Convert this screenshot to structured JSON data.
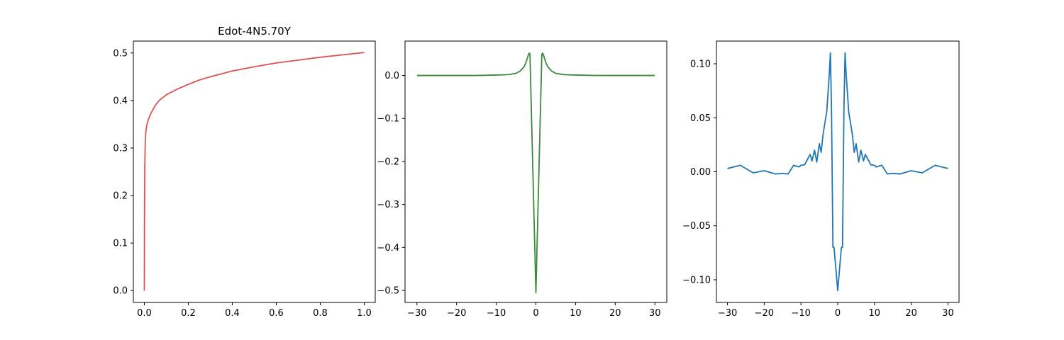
{
  "chart_data": [
    {
      "type": "line",
      "title": "Edot-4N5.70Y",
      "xlabel": "",
      "ylabel": "",
      "xlim": [
        -0.05,
        1.05
      ],
      "ylim": [
        -0.025,
        0.525
      ],
      "xticks": [
        0.0,
        0.2,
        0.4,
        0.6,
        0.8,
        1.0
      ],
      "xtick_labels": [
        "0.0",
        "0.2",
        "0.4",
        "0.6",
        "0.8",
        "1.0"
      ],
      "yticks": [
        0.0,
        0.1,
        0.2,
        0.3,
        0.4,
        0.5
      ],
      "ytick_labels": [
        "0.0",
        "0.1",
        "0.2",
        "0.3",
        "0.4",
        "0.5"
      ],
      "grid": false,
      "series": [
        {
          "color": "#e05252",
          "x": [
            0.0,
            0.001,
            0.002,
            0.004,
            0.006,
            0.01,
            0.015,
            0.02,
            0.03,
            0.05,
            0.07,
            0.1,
            0.15,
            0.2,
            0.25,
            0.3,
            0.4,
            0.5,
            0.6,
            0.7,
            0.8,
            0.9,
            1.0
          ],
          "y": [
            0.0,
            0.18,
            0.26,
            0.31,
            0.33,
            0.345,
            0.355,
            0.362,
            0.373,
            0.39,
            0.401,
            0.412,
            0.424,
            0.434,
            0.443,
            0.45,
            0.462,
            0.471,
            0.479,
            0.485,
            0.491,
            0.496,
            0.501
          ]
        }
      ]
    },
    {
      "type": "line",
      "title": "",
      "xlabel": "",
      "ylabel": "",
      "xlim": [
        -33,
        33
      ],
      "ylim": [
        -0.528,
        0.08
      ],
      "xticks": [
        -30,
        -20,
        -10,
        0,
        10,
        20,
        30
      ],
      "xtick_labels": [
        "−30",
        "−20",
        "−10",
        "0",
        "10",
        "20",
        "30"
      ],
      "yticks": [
        0.0,
        -0.1,
        -0.2,
        -0.3,
        -0.4,
        -0.5
      ],
      "ytick_labels": [
        "0.0",
        "−0.1",
        "−0.2",
        "−0.3",
        "−0.4",
        "−0.5"
      ],
      "grid": false,
      "series": [
        {
          "color": "#3a8a3a",
          "x": [
            -30,
            -25,
            -20,
            -15,
            -10,
            -7,
            -5,
            -4,
            -3,
            -2.5,
            -2,
            -1.7,
            -1.5,
            0,
            1.5,
            1.7,
            2,
            2.5,
            3,
            4,
            5,
            7,
            10,
            15,
            20,
            25,
            30
          ],
          "y": [
            0.0,
            0.0,
            0.0,
            0.0,
            0.001,
            0.002,
            0.005,
            0.01,
            0.02,
            0.03,
            0.045,
            0.052,
            0.05,
            -0.505,
            0.05,
            0.052,
            0.045,
            0.03,
            0.02,
            0.01,
            0.005,
            0.002,
            0.001,
            0.0,
            0.0,
            0.0,
            0.0
          ]
        }
      ]
    },
    {
      "type": "line",
      "title": "",
      "xlabel": "",
      "ylabel": "",
      "xlim": [
        -33,
        33
      ],
      "ylim": [
        -0.121,
        0.121
      ],
      "xticks": [
        -30,
        -20,
        -10,
        0,
        10,
        20,
        30
      ],
      "xtick_labels": [
        "−30",
        "−20",
        "−10",
        "0",
        "10",
        "20",
        "30"
      ],
      "yticks": [
        0.1,
        0.05,
        0.0,
        -0.05,
        -0.1
      ],
      "ytick_labels": [
        "0.10",
        "0.05",
        "0.00",
        "−0.05",
        "−0.10"
      ],
      "grid": false,
      "series": [
        {
          "color": "#1f77b4",
          "x": [
            -30,
            -26.5,
            -23,
            -20,
            -17,
            -15,
            -13.5,
            -12,
            -10.5,
            -10,
            -9,
            -8,
            -7.5,
            -7,
            -6.3,
            -5.7,
            -5,
            -4.5,
            -4,
            -3.5,
            -3,
            -2.7,
            -2.3,
            -2,
            -1.7,
            -1.3,
            -1,
            -0.5,
            0,
            0.5,
            1,
            1.3,
            1.7,
            2,
            2.3,
            2.7,
            3,
            3.5,
            4,
            4.5,
            5,
            5.7,
            6.3,
            7,
            7.5,
            8,
            9,
            10,
            10.5,
            12,
            13.5,
            15,
            17,
            20,
            23,
            26.5,
            30
          ],
          "y": [
            0.003,
            0.006,
            -0.001,
            0.001,
            -0.002,
            -0.0015,
            -0.002,
            0.006,
            0.0045,
            0.006,
            0.0065,
            0.013,
            0.016,
            0.01,
            0.02,
            0.009,
            0.026,
            0.018,
            0.034,
            0.045,
            0.055,
            0.07,
            0.09,
            0.11,
            0.06,
            -0.07,
            -0.07,
            -0.09,
            -0.11,
            -0.09,
            -0.07,
            -0.07,
            0.06,
            0.11,
            0.09,
            0.07,
            0.055,
            0.045,
            0.034,
            0.018,
            0.026,
            0.009,
            0.02,
            0.01,
            0.016,
            0.013,
            0.0065,
            0.006,
            0.0045,
            0.006,
            -0.002,
            -0.0015,
            -0.002,
            0.001,
            -0.001,
            0.006,
            0.003
          ]
        }
      ]
    }
  ]
}
